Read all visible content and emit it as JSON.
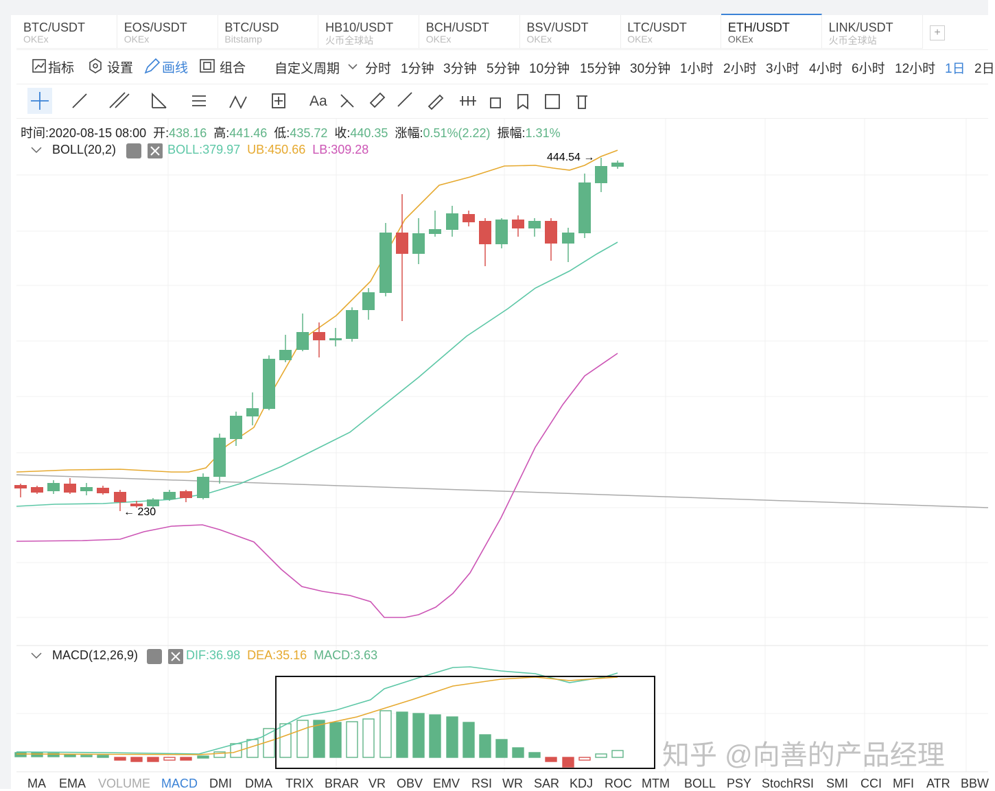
{
  "tabs": [
    {
      "pair": "BTC/USDT",
      "exchange": "OKEx"
    },
    {
      "pair": "EOS/USDT",
      "exchange": "OKEx"
    },
    {
      "pair": "BTC/USD",
      "exchange": "Bitstamp"
    },
    {
      "pair": "HB10/USDT",
      "exchange": "火币全球站"
    },
    {
      "pair": "BCH/USDT",
      "exchange": "OKEx"
    },
    {
      "pair": "BSV/USDT",
      "exchange": "OKEx"
    },
    {
      "pair": "LTC/USDT",
      "exchange": "OKEx"
    },
    {
      "pair": "ETH/USDT",
      "exchange": "OKEx"
    },
    {
      "pair": "LINK/USDT",
      "exchange": "火币全球站"
    }
  ],
  "toolbar": [
    "指标",
    "设置",
    "画线",
    "组合"
  ],
  "custom_period": "自定义周期",
  "intervals": [
    "分时",
    "1分钟",
    "3分钟",
    "5分钟",
    "10分钟",
    "15分钟",
    "30分钟",
    "1小时",
    "2小时",
    "3小时",
    "4小时",
    "6小时",
    "12小时",
    "1日",
    "2日"
  ],
  "text_tool": "Aa",
  "info": [
    {
      "label": "时间:",
      "value": "2020-08-15 08:00"
    },
    {
      "label": "开:",
      "value": "438.16"
    },
    {
      "label": "高:",
      "value": "441.46"
    },
    {
      "label": "低:",
      "value": "435.72"
    },
    {
      "label": "收:",
      "value": "440.35"
    },
    {
      "label": "涨幅:",
      "value": "0.51%(2.22)"
    },
    {
      "label": "振幅:",
      "value": "1.31%"
    }
  ],
  "boll": {
    "name": "BOLL(20,2)",
    "values": [
      "BOLL:379.97",
      "UB:450.66",
      "LB:309.28"
    ]
  },
  "macd": {
    "name": "MACD(12,26,9)",
    "values": [
      "DIF:36.98",
      "DEA:35.16",
      "MACD:3.63"
    ]
  },
  "annotations": [
    "444.54 →",
    "← 230"
  ],
  "indicators": [
    "MA",
    "EMA",
    "VOLUME",
    "MACD",
    "DMI",
    "DMA",
    "TRIX",
    "BRAR",
    "VR",
    "OBV",
    "EMV",
    "RSI",
    "WR",
    "SAR",
    "KDJ",
    "ROC",
    "MTM",
    "BOLL",
    "PSY",
    "StochRSI",
    "SMI",
    "CCI",
    "MFI",
    "ATR",
    "BBW"
  ],
  "watermark": "知乎 @向善的产品经理"
}
